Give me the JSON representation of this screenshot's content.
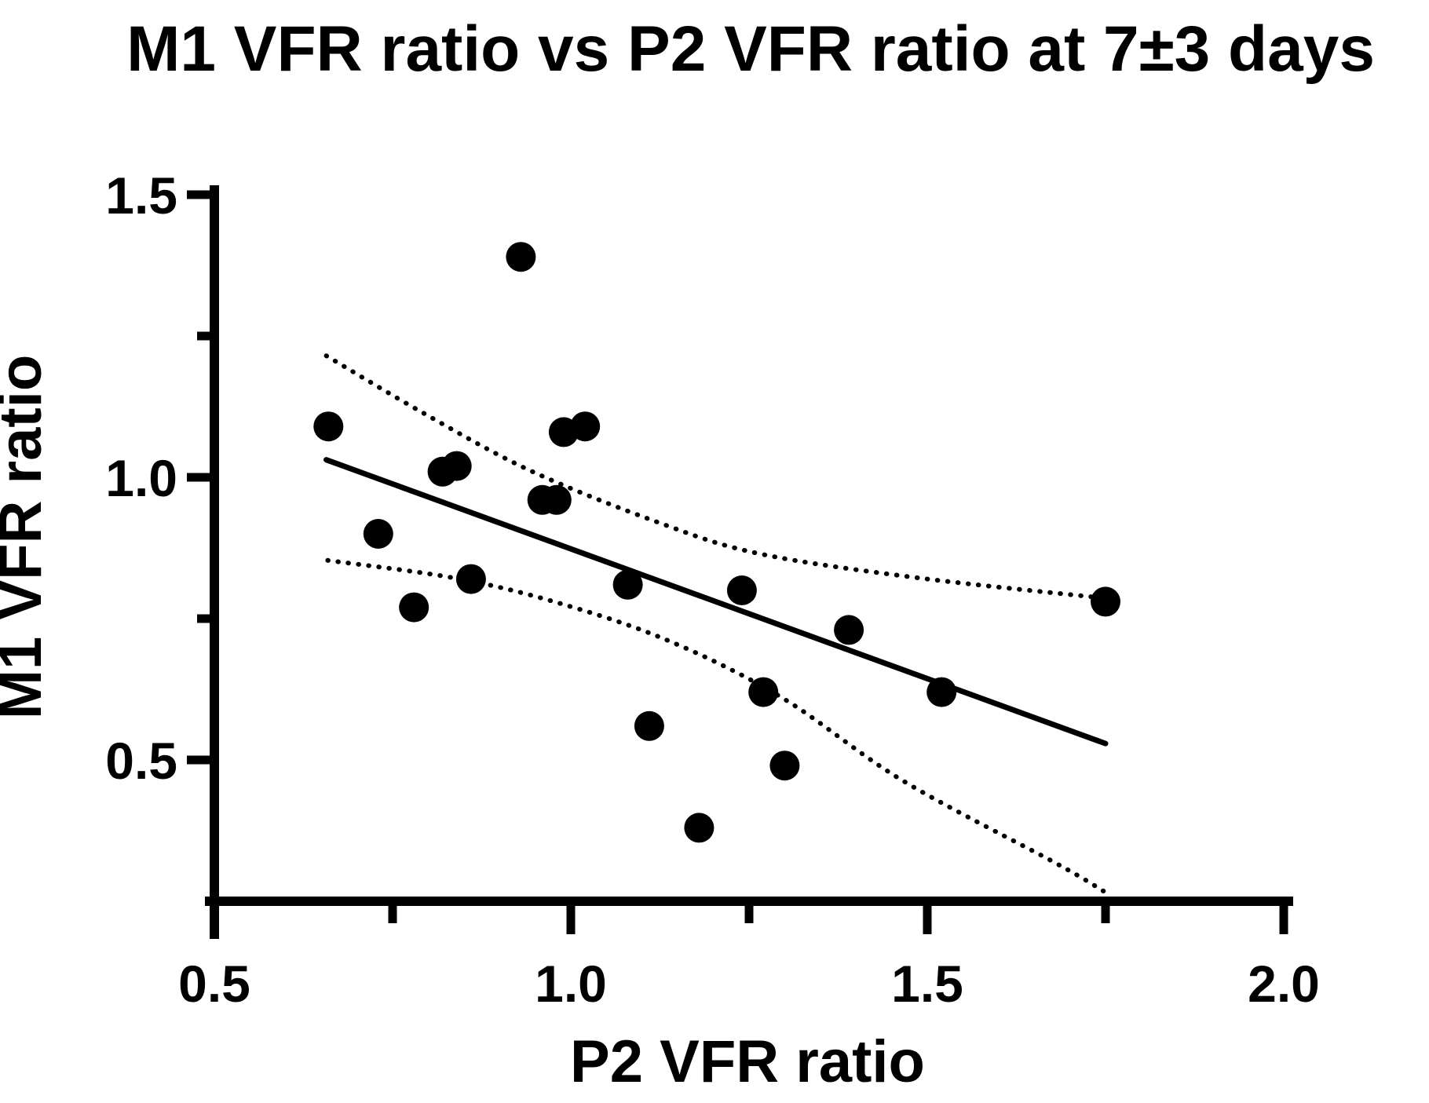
{
  "chart_data": {
    "type": "scatter",
    "title": "M1 VFR ratio vs P2 VFR ratio at 7±3 days",
    "xlabel": "P2 VFR ratio",
    "ylabel": "M1 VFR ratio",
    "xlim": [
      0.5,
      2.0
    ],
    "ylim": [
      0.25,
      1.5
    ],
    "x_ticks": [
      0.5,
      1.0,
      1.5,
      2.0
    ],
    "x_tick_labels": [
      "0.5",
      "1.0",
      "1.5",
      "2.0"
    ],
    "x_minor_ticks": [
      0.75,
      1.25,
      1.75
    ],
    "y_ticks": [
      0.5,
      1.0,
      1.5
    ],
    "y_tick_labels": [
      "0.5",
      "1.0",
      "1.5"
    ],
    "y_minor_ticks": [
      0.75,
      1.25
    ],
    "grid": false,
    "legend_position": "none",
    "marker_color": "#000000",
    "axis_color": "#000000",
    "background_color": "#ffffff",
    "points": [
      [
        0.66,
        1.09
      ],
      [
        0.73,
        0.9
      ],
      [
        0.78,
        0.77
      ],
      [
        0.82,
        1.01
      ],
      [
        0.84,
        1.02
      ],
      [
        0.86,
        0.82
      ],
      [
        0.93,
        1.39
      ],
      [
        0.96,
        0.96
      ],
      [
        0.98,
        0.96
      ],
      [
        0.99,
        1.08
      ],
      [
        1.02,
        1.09
      ],
      [
        1.08,
        0.81
      ],
      [
        1.11,
        0.56
      ],
      [
        1.18,
        0.38
      ],
      [
        1.24,
        0.8
      ],
      [
        1.27,
        0.62
      ],
      [
        1.3,
        0.49
      ],
      [
        1.39,
        0.73
      ],
      [
        1.52,
        0.62
      ],
      [
        1.75,
        0.78
      ]
    ],
    "regression_line": {
      "x1": 0.657,
      "y1": 1.031,
      "x2": 1.75,
      "y2": 0.529
    },
    "ci_upper": [
      [
        0.657,
        1.215
      ],
      [
        0.794,
        1.113
      ],
      [
        0.943,
        1.012
      ],
      [
        1.121,
        0.921
      ],
      [
        1.264,
        0.865
      ],
      [
        1.488,
        0.822
      ],
      [
        1.75,
        0.786
      ]
    ],
    "ci_lower": [
      [
        0.659,
        0.853
      ],
      [
        0.836,
        0.822
      ],
      [
        0.979,
        0.779
      ],
      [
        1.135,
        0.712
      ],
      [
        1.295,
        0.611
      ],
      [
        1.466,
        0.463
      ],
      [
        1.681,
        0.317
      ],
      [
        1.747,
        0.268
      ]
    ]
  }
}
